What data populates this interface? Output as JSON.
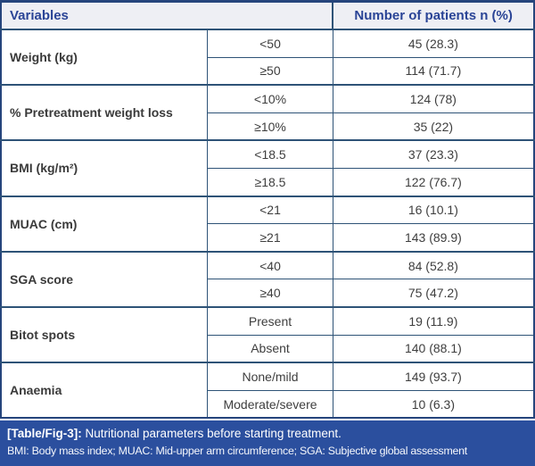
{
  "table": {
    "header": {
      "variables_label": "Variables",
      "patients_label": "Number of patients n (%)"
    },
    "groups": [
      {
        "variable": "Weight (kg)",
        "rows": [
          {
            "category": "<50",
            "value": "45 (28.3)"
          },
          {
            "category": "≥50",
            "value": "114 (71.7)"
          }
        ]
      },
      {
        "variable": "% Pretreatment weight loss",
        "rows": [
          {
            "category": "<10%",
            "value": "124 (78)"
          },
          {
            "category": "≥10%",
            "value": "35 (22)"
          }
        ]
      },
      {
        "variable": "BMI (kg/m²)",
        "rows": [
          {
            "category": "<18.5",
            "value": "37 (23.3)"
          },
          {
            "category": "≥18.5",
            "value": "122 (76.7)"
          }
        ]
      },
      {
        "variable": "MUAC (cm)",
        "rows": [
          {
            "category": "<21",
            "value": "16 (10.1)"
          },
          {
            "category": "≥21",
            "value": "143 (89.9)"
          }
        ]
      },
      {
        "variable": "SGA score",
        "rows": [
          {
            "category": "<40",
            "value": "84 (52.8)"
          },
          {
            "category": "≥40",
            "value": "75 (47.2)"
          }
        ]
      },
      {
        "variable": "Bitot spots",
        "rows": [
          {
            "category": "Present",
            "value": "19 (11.9)"
          },
          {
            "category": "Absent",
            "value": "140 (88.1)"
          }
        ]
      },
      {
        "variable": "Anaemia",
        "rows": [
          {
            "category": "None/mild",
            "value": "149 (93.7)"
          },
          {
            "category": "Moderate/severe",
            "value": "10 (6.3)"
          }
        ]
      }
    ]
  },
  "caption": {
    "label": "[Table/Fig-3]:",
    "text": "Nutritional parameters before starting treatment."
  },
  "footnote": "BMI: Body mass index; MUAC: Mid-upper arm circumference; SGA: Subjective global assessment",
  "colors": {
    "caption_bg": "#2b4f9e",
    "header_bg": "#eeeff4",
    "header_text": "#2a4496",
    "border": "#2e5377",
    "outer_border": "#26457c",
    "body_text": "#3e3e3e"
  }
}
